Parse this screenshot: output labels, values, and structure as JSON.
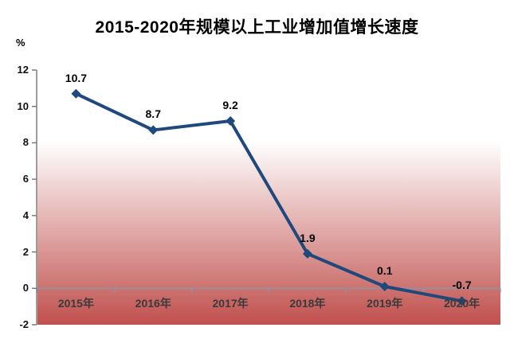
{
  "chart_data": {
    "type": "line",
    "title": "2015-2020年规模以上工业增加值增长速度",
    "unit_label": "%",
    "categories": [
      "2015年",
      "2016年",
      "2017年",
      "2018年",
      "2019年",
      "2020年"
    ],
    "series": [
      {
        "name": "规模以上工业增加值增长速度",
        "values": [
          10.7,
          8.7,
          9.2,
          1.9,
          0.1,
          -0.7
        ],
        "data_labels": [
          "10.7",
          "8.7",
          "9.2",
          "1.9",
          "0.1",
          "-0.7"
        ]
      }
    ],
    "ylim": [
      -2,
      12
    ],
    "yticks": [
      12,
      10,
      8,
      6,
      4,
      2,
      0,
      -2
    ],
    "grid": false,
    "legend_visible": false,
    "marker_shape": "diamond",
    "colors": {
      "line": "#1F497D",
      "marker": "#1F497D",
      "axis_line": "#737373",
      "zero_line": "#7D9CB0",
      "plot_gradient_top": "#FFFFFF",
      "plot_gradient_bottom": "#C0504D",
      "title_text": "#000000",
      "data_label_text": "#000000"
    }
  }
}
